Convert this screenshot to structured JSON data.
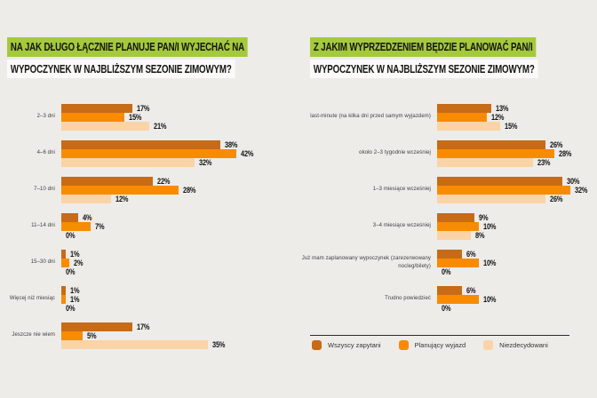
{
  "page": {
    "background": "#edece9",
    "highlight_green": "#a4c93c",
    "highlight_white": "#fbfaf8"
  },
  "legend": {
    "items": [
      {
        "label": "Wszyscy zapytani",
        "color": "#c76b16"
      },
      {
        "label": "Planujący wyjazd",
        "color": "#f98b00"
      },
      {
        "label": "Niezdecydowani",
        "color": "#fad4a6"
      }
    ],
    "position": "bottom-right"
  },
  "chart_data": [
    {
      "type": "bar",
      "orientation": "horizontal",
      "title_lines": [
        "NA JAK DŁUGO ŁĄCZNIE PLANUJE PAN/I WYJECHAĆ NA",
        "WYPOCZYNEK W NAJBLIŻSZYM SEZONIE ZIMOWYM?"
      ],
      "unit": "%",
      "value_suffix": "%",
      "xlim": [
        0,
        45
      ],
      "grid": false,
      "categories": [
        "2–3 dni",
        "4–6 dni",
        "7–10 dni",
        "11–14 dni",
        "15–30 dni",
        "Więcej niż miesiąc",
        "Jeszcze nie wiem"
      ],
      "series": [
        {
          "name": "Wszyscy zapytani",
          "color": "#c76b16",
          "values": [
            17,
            38,
            22,
            4,
            1,
            1,
            17
          ]
        },
        {
          "name": "Planujący wyjazd",
          "color": "#f98b00",
          "values": [
            15,
            42,
            28,
            7,
            2,
            1,
            5
          ]
        },
        {
          "name": "Niezdecydowani",
          "color": "#fad4a6",
          "values": [
            21,
            32,
            12,
            0,
            0,
            0,
            35
          ]
        }
      ]
    },
    {
      "type": "bar",
      "orientation": "horizontal",
      "title_lines": [
        "Z JAKIM WYPRZEDZENIEM BĘDZIE PLANOWAĆ PAN/I",
        "WYPOCZYNEK W NAJBLIŻSZYM SEZONIE ZIMOWYM?"
      ],
      "unit": "%",
      "value_suffix": "%",
      "xlim": [
        0,
        45
      ],
      "grid": false,
      "categories": [
        "last-minute (na kilka dni przed samym wyjazdem)",
        "około 2–3 tygodnie wcześniej",
        "1–3 miesiące wcześniej",
        "3–4 miesiące wcześniej",
        "Już mam zaplanowany wypoczynek (zarezerwowany nocleg/bilety)",
        "Trudno powiedzieć"
      ],
      "series": [
        {
          "name": "Wszyscy zapytani",
          "color": "#c76b16",
          "values": [
            13,
            26,
            30,
            9,
            6,
            6
          ]
        },
        {
          "name": "Planujący wyjazd",
          "color": "#f98b00",
          "values": [
            12,
            28,
            32,
            10,
            10,
            10
          ]
        },
        {
          "name": "Niezdecydowani",
          "color": "#fad4a6",
          "values": [
            15,
            23,
            26,
            8,
            0,
            0
          ]
        }
      ]
    }
  ]
}
